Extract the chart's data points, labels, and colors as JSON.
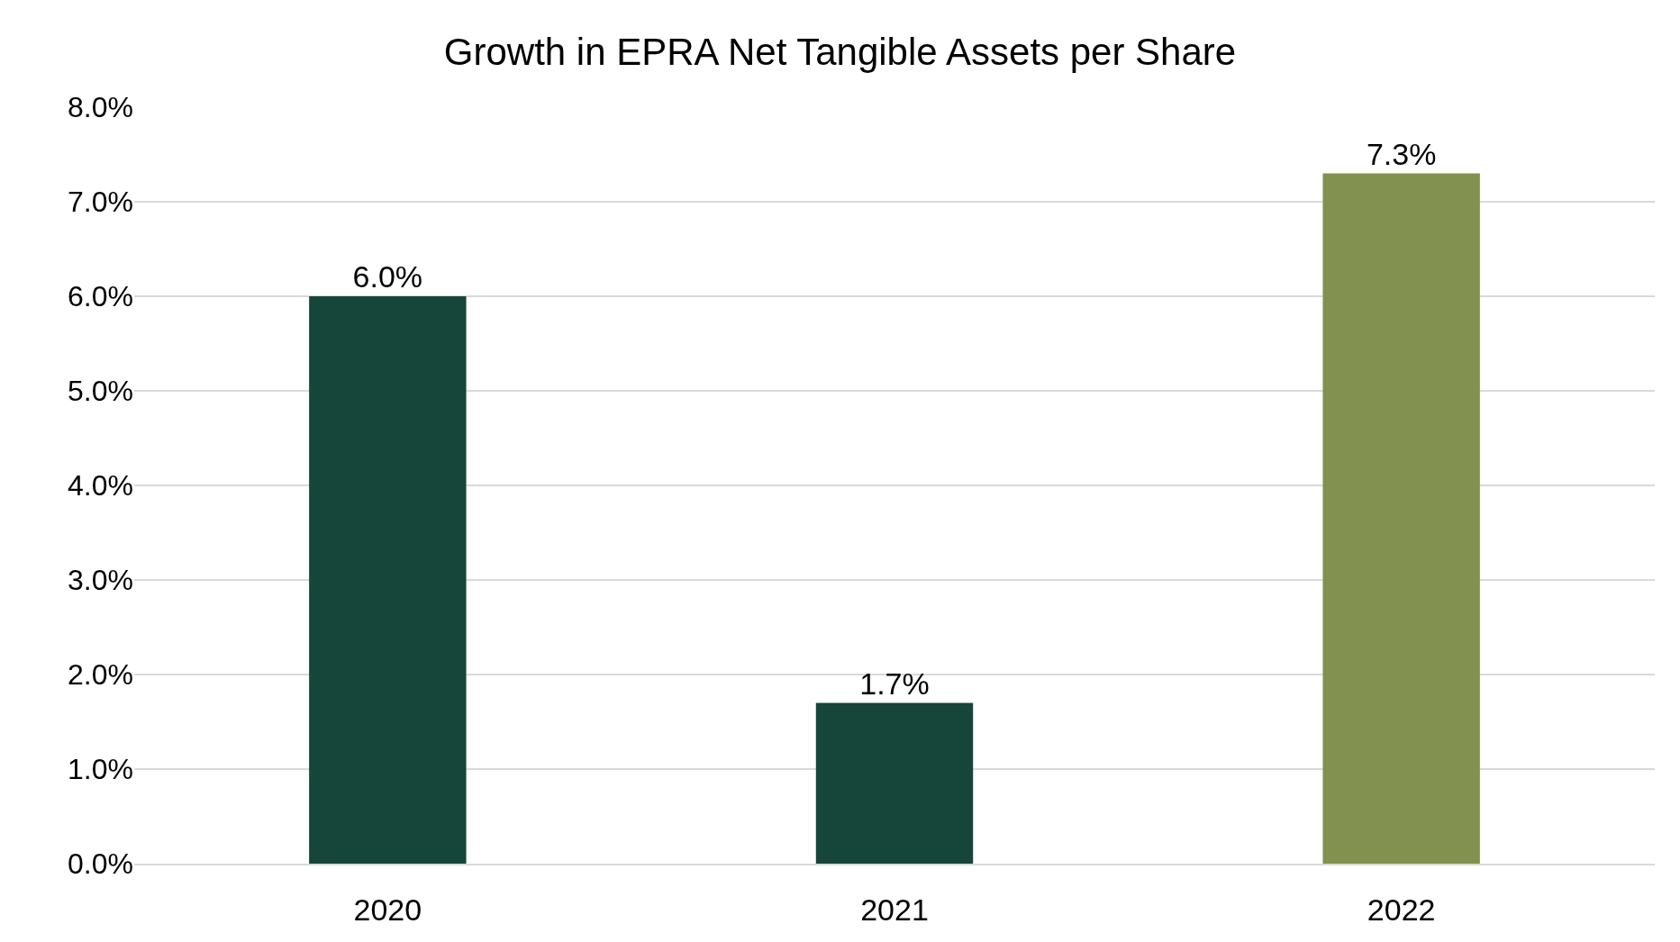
{
  "chart_data": {
    "type": "bar",
    "title": "Growth in EPRA Net Tangible Assets per Share",
    "categories": [
      "2020",
      "2021",
      "2022"
    ],
    "values": [
      6.0,
      1.7,
      7.3
    ],
    "colors": [
      "#164539",
      "#164539",
      "#82914f"
    ],
    "value_labels": [
      "6.0%",
      "1.7%",
      "7.3%"
    ],
    "ylim": [
      0,
      8
    ],
    "yticks": [
      {
        "value": 0,
        "label": "0.0%"
      },
      {
        "value": 1,
        "label": "1.0%"
      },
      {
        "value": 2,
        "label": "2.0%"
      },
      {
        "value": 3,
        "label": "3.0%"
      },
      {
        "value": 4,
        "label": "4.0%"
      },
      {
        "value": 5,
        "label": "5.0%"
      },
      {
        "value": 6,
        "label": "6.0%"
      },
      {
        "value": 7,
        "label": "7.0%"
      },
      {
        "value": 8,
        "label": "8.0%"
      }
    ],
    "grid": "y"
  }
}
